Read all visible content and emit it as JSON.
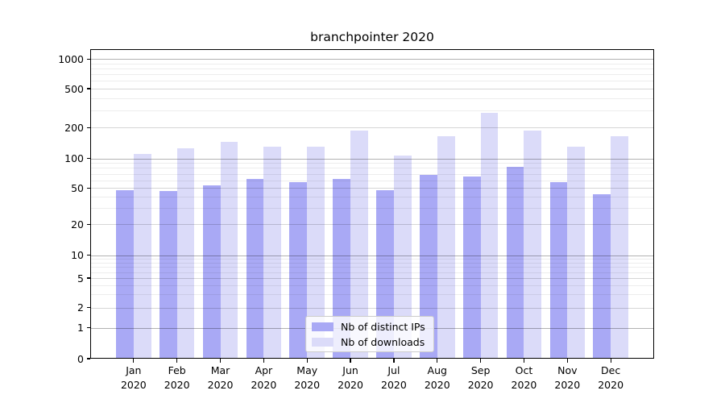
{
  "title": "branchpointer 2020",
  "chart_data": {
    "type": "bar",
    "title": "branchpointer 2020",
    "categories": [
      "Jan 2020",
      "Feb 2020",
      "Mar 2020",
      "Apr 2020",
      "May 2020",
      "Jun 2020",
      "Jul 2020",
      "Aug 2020",
      "Sep 2020",
      "Oct 2020",
      "Nov 2020",
      "Dec 2020"
    ],
    "x_tick_months": [
      "Jan",
      "Feb",
      "Mar",
      "Apr",
      "May",
      "Jun",
      "Jul",
      "Aug",
      "Sep",
      "Oct",
      "Nov",
      "Dec"
    ],
    "x_tick_year": "2020",
    "series": [
      {
        "name": "Nb of distinct IPs",
        "color": "#a9a9f5",
        "values": [
          47,
          46,
          53,
          62,
          57,
          62,
          47,
          68,
          66,
          83,
          57,
          43
        ]
      },
      {
        "name": "Nb of downloads",
        "color": "#dbdbf9",
        "values": [
          111,
          125,
          146,
          130,
          131,
          188,
          106,
          165,
          282,
          188,
          131,
          165
        ]
      }
    ],
    "yticks": [
      0,
      1,
      2,
      5,
      10,
      20,
      50,
      100,
      200,
      500,
      1000
    ],
    "yscale": "log above 1, linear segment from 0 to 1",
    "ylim": [
      0,
      1260
    ],
    "grid": "horizontal major and minor gridlines",
    "legend_position": "lower center",
    "background": "#ffffff",
    "bar_colors": {
      "distinct_ips": "#a9a9f5",
      "downloads": "#dbdbf9"
    }
  }
}
